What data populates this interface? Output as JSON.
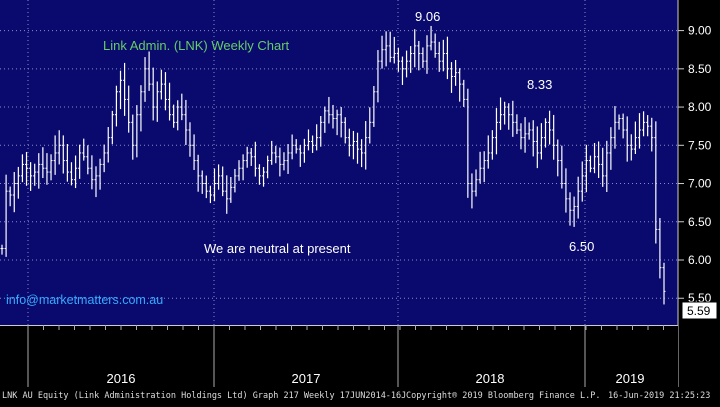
{
  "title": "Link Admin. (LNK) Weekly Chart",
  "note": "We are neutral at present",
  "email": "info@marketmatters.com.au",
  "last_price_label": "5.59",
  "footer": {
    "left": "LNK AU Equity (Link Administration Holdings Ltd) Graph 217  Weekly 17JUN2014-16J",
    "middle": "Copyright® 2019 Bloomberg Finance L.P.",
    "right": "16-Jun-2019 21:25:23"
  },
  "colors": {
    "background": "#0a0a6e",
    "grid": "#8a8ac8",
    "bars": "#ffffff",
    "title": "#66cc66",
    "email": "#33aaff"
  },
  "chart_data": {
    "type": "ohlc",
    "title": "Link Admin. (LNK) Weekly Chart",
    "y_axis_side": "right",
    "ylim": [
      5.15,
      9.4
    ],
    "yticks": [
      "9.00",
      "8.50",
      "8.00",
      "7.50",
      "7.00",
      "6.50",
      "6.00",
      "5.50"
    ],
    "x_year_labels": [
      "2016",
      "2017",
      "2018",
      "2019"
    ],
    "annotations": [
      {
        "text": "9.06",
        "x": "2017-09",
        "y": 9.06
      },
      {
        "text": "8.33",
        "x": "2018-01",
        "y": 8.33
      },
      {
        "text": "6.50",
        "x": "2018-10",
        "y": 6.5
      }
    ],
    "weekly_closes": [
      6.15,
      6.9,
      6.85,
      7.0,
      7.1,
      7.25,
      7.2,
      7.1,
      7.15,
      7.25,
      7.2,
      7.15,
      7.3,
      7.4,
      7.5,
      7.3,
      7.15,
      7.05,
      7.2,
      7.4,
      7.35,
      7.2,
      7.05,
      7.1,
      7.25,
      7.4,
      7.6,
      7.9,
      8.2,
      8.35,
      8.1,
      7.8,
      7.5,
      7.9,
      8.2,
      8.5,
      8.3,
      8.0,
      8.2,
      8.3,
      8.1,
      7.9,
      7.8,
      8.0,
      7.9,
      7.7,
      7.5,
      7.3,
      7.1,
      7.0,
      6.9,
      6.85,
      7.0,
      7.1,
      6.9,
      6.8,
      6.95,
      7.1,
      7.2,
      7.3,
      7.4,
      7.35,
      7.2,
      7.1,
      7.15,
      7.3,
      7.4,
      7.35,
      7.25,
      7.3,
      7.4,
      7.5,
      7.45,
      7.4,
      7.5,
      7.55,
      7.5,
      7.6,
      7.8,
      7.95,
      7.9,
      7.85,
      7.9,
      7.8,
      7.6,
      7.5,
      7.55,
      7.45,
      7.4,
      7.6,
      7.8,
      8.2,
      8.6,
      8.75,
      8.8,
      8.65,
      8.7,
      8.6,
      8.5,
      8.6,
      8.7,
      8.8,
      8.7,
      8.6,
      8.8,
      8.85,
      8.7,
      8.6,
      8.7,
      8.5,
      8.4,
      8.45,
      8.3,
      8.1,
      7.0,
      6.9,
      7.05,
      7.2,
      7.3,
      7.4,
      7.6,
      7.8,
      7.9,
      8.0,
      7.9,
      7.8,
      7.7,
      7.6,
      7.65,
      7.7,
      7.55,
      7.4,
      7.6,
      7.8,
      7.7,
      7.5,
      7.3,
      7.0,
      6.8,
      6.65,
      6.7,
      6.9,
      7.1,
      7.3,
      7.2,
      7.35,
      7.25,
      7.1,
      7.4,
      7.6,
      7.8,
      7.85,
      7.7,
      7.5,
      7.45,
      7.6,
      7.7,
      7.8,
      7.75,
      7.6,
      6.4,
      5.9,
      5.59
    ]
  }
}
